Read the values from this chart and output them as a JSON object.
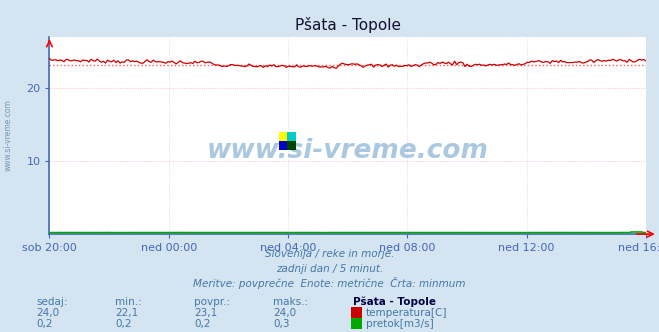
{
  "title": "Pšata - Topole",
  "bg_color": "#d4e4f0",
  "plot_bg_color": "#ffffff",
  "grid_color": "#ffb0b0",
  "grid_color_v": "#c8c8e8",
  "x_labels": [
    "sob 20:00",
    "ned 00:00",
    "ned 04:00",
    "ned 08:00",
    "ned 12:00",
    "ned 16:00"
  ],
  "x_ticks_norm": [
    0.0,
    0.2,
    0.4,
    0.6,
    0.8,
    1.0
  ],
  "ylim": [
    0,
    27
  ],
  "yticks": [
    10,
    20
  ],
  "n_points": 288,
  "temp_avg": 23.1,
  "temp_min": 22.1,
  "temp_max": 24.0,
  "temp_line_color": "#cc0000",
  "temp_avg_color": "#ff5555",
  "flow_line_color": "#00aa00",
  "watermark_color": "#4488bb",
  "axis_color": "#4466aa",
  "bottom_text_color": "#4477aa",
  "subtitle_lines": [
    "Slovenija / reke in morje.",
    "zadnji dan / 5 minut.",
    "Meritve: povprečne  Enote: metrične  Črta: minmum"
  ],
  "legend_headers": [
    "sedaj:",
    "min.:",
    "povpr.:",
    "maks.:",
    "Pšata - Topole"
  ],
  "temp_values_str": [
    "24,0",
    "22,1",
    "23,1",
    "24,0"
  ],
  "flow_values_str": [
    "0,2",
    "0,2",
    "0,2",
    "0,3"
  ],
  "legend_series": [
    "temperatura[C]",
    "pretok[m3/s]"
  ],
  "legend_colors": [
    "#cc0000",
    "#00aa00"
  ],
  "spine_color": "#4466bb",
  "tick_color": "#4466bb"
}
